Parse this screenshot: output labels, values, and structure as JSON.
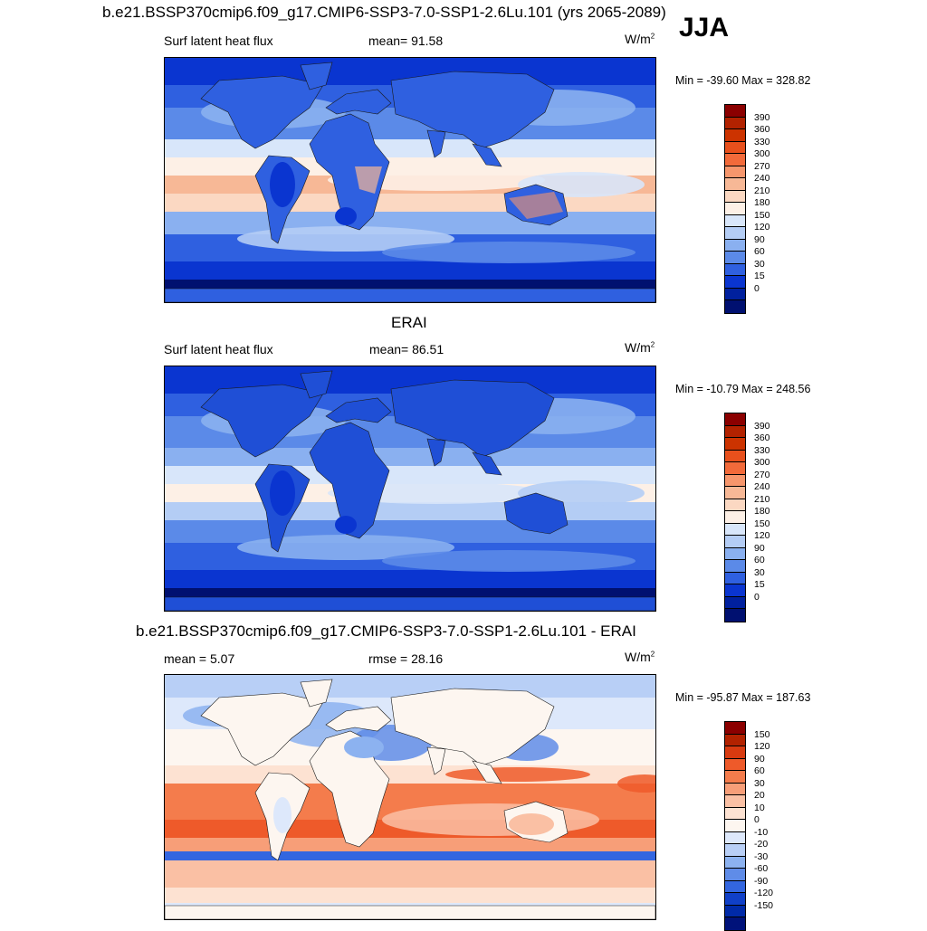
{
  "season": "JJA",
  "panels": [
    {
      "id": "model",
      "title": "b.e21.BSSP370cmip6.f09_g17.CMIP6-SSP3-7.0-SSP1-2.6Lu.101 (yrs 2065-2089)",
      "left_label": "Surf latent heat flux",
      "center_label": "mean=  91.58",
      "units": "W/m",
      "units_sup": "2",
      "minmax": "Min = -39.60 Max = 328.82",
      "colorbar_labels": [
        "390",
        "360",
        "330",
        "300",
        "270",
        "240",
        "210",
        "180",
        "150",
        "120",
        "90",
        "60",
        "30",
        "15",
        "0"
      ],
      "colors": [
        "#8b0000",
        "#b22200",
        "#cc3300",
        "#e8501c",
        "#f26a3a",
        "#f6966c",
        "#f7b896",
        "#fbd8c2",
        "#fdf0e6",
        "#d8e6fa",
        "#b4cdf5",
        "#8ab0f0",
        "#5b8ae8",
        "#2f60e0",
        "#0a35d0",
        "#00209e",
        "#001070"
      ],
      "map_style": "abs"
    },
    {
      "id": "obs",
      "title": "ERAI",
      "left_label": "Surf latent heat flux",
      "center_label": "mean=  86.51",
      "units": "W/m",
      "units_sup": "2",
      "minmax": "Min = -10.79 Max = 248.56",
      "colorbar_labels": [
        "390",
        "360",
        "330",
        "300",
        "270",
        "240",
        "210",
        "180",
        "150",
        "120",
        "90",
        "60",
        "30",
        "15",
        "0"
      ],
      "colors": [
        "#8b0000",
        "#b22200",
        "#cc3300",
        "#e8501c",
        "#f26a3a",
        "#f6966c",
        "#f7b896",
        "#fbd8c2",
        "#fdf0e6",
        "#d8e6fa",
        "#b4cdf5",
        "#8ab0f0",
        "#5b8ae8",
        "#2f60e0",
        "#0a35d0",
        "#00209e",
        "#001070"
      ],
      "map_style": "abs"
    },
    {
      "id": "diff",
      "title": "b.e21.BSSP370cmip6.f09_g17.CMIP6-SSP3-7.0-SSP1-2.6Lu.101 - ERAI",
      "left_label": "mean =   5.07",
      "center_label": "rmse =  28.16",
      "units": "W/m",
      "units_sup": "2",
      "minmax": "Min = -95.87 Max = 187.63",
      "colorbar_labels": [
        "150",
        "120",
        "90",
        "60",
        "30",
        "20",
        "10",
        "0",
        "-10",
        "-20",
        "-30",
        "-60",
        "-90",
        "-120",
        "-150"
      ],
      "colors": [
        "#8b0000",
        "#b22200",
        "#d83a10",
        "#ee5a2a",
        "#f47c4c",
        "#f79e78",
        "#fac0a4",
        "#fde2d2",
        "#fdf6f0",
        "#dde8fb",
        "#b8cff6",
        "#8cb2f0",
        "#5f8ce8",
        "#3366e0",
        "#1040c8",
        "#002aa8",
        "#00127a"
      ],
      "map_style": "diff"
    }
  ]
}
